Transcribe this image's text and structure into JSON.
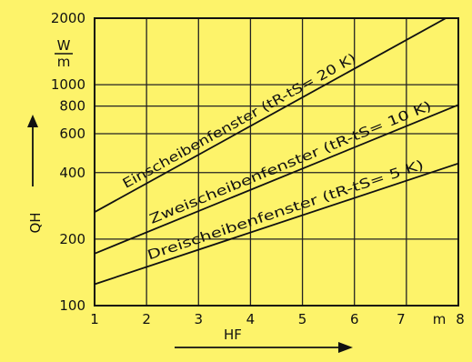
{
  "colors": {
    "background": "#fdf36a",
    "ink": "#111111"
  },
  "chart_data": {
    "type": "line",
    "title": "",
    "xlabel": "HF",
    "xunit": "m",
    "ylabel": "QH",
    "yunit": "W/m",
    "x_scale": "linear",
    "y_scale": "log",
    "xlim": [
      1,
      8
    ],
    "ylim": [
      100,
      2000
    ],
    "x_ticks": [
      1,
      2,
      3,
      4,
      5,
      6,
      7,
      8
    ],
    "y_ticks": [
      100,
      200,
      400,
      600,
      800,
      1000,
      2000
    ],
    "grid": true,
    "series": [
      {
        "name": "Einscheibenfenster (tR-tS= 20 K)",
        "x": [
          1,
          8
        ],
        "y": [
          265,
          2150
        ]
      },
      {
        "name": "Zweischeibenfenster (tR-tS= 10 K)",
        "x": [
          1,
          8
        ],
        "y": [
          172,
          810
        ]
      },
      {
        "name": "Dreischeibenfenster (tR-tS= 5 K)",
        "x": [
          1,
          8
        ],
        "y": [
          125,
          440
        ]
      }
    ]
  },
  "labels": {
    "y_unit_top": "W",
    "y_unit_bottom": "m",
    "y_axis": "QH",
    "x_axis": "HF",
    "x_unit": "m",
    "series1": "Einscheibenfenster (tR-tS= 20 K)",
    "series2": "Zweischeibenfenster (tR-tS= 10 K)",
    "series3": "Dreischeibenfenster (tR-tS= 5 K)"
  }
}
